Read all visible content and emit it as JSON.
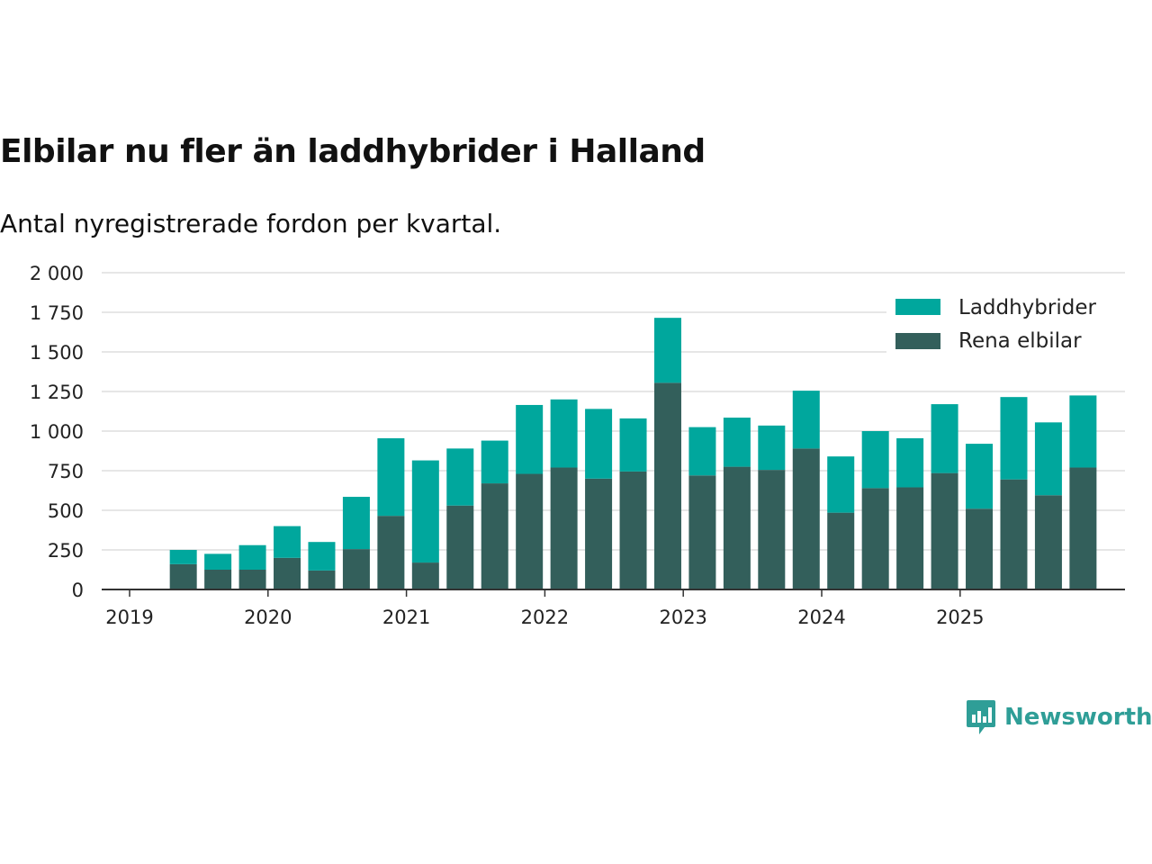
{
  "title": "Elbilar nu fler än laddhybrider i Halland",
  "subtitle": "Antal nyregistrerade fordon per kvartal.",
  "logo": {
    "text": "Newsworthy",
    "icon": "newsworthy-logo-icon"
  },
  "colors": {
    "hybrid": "#00a79d",
    "electric": "#335f5b",
    "grid": "#dddddd",
    "axis": "#333333"
  },
  "chart_data": {
    "type": "bar",
    "stacked": true,
    "title": "Elbilar nu fler än laddhybrider i Halland",
    "xlabel": "",
    "ylabel": "",
    "ylim": [
      0,
      2000
    ],
    "yticks": [
      0,
      250,
      500,
      750,
      1000,
      1250,
      1500,
      1750,
      2000
    ],
    "ytick_labels": [
      "0",
      "250",
      "500",
      "750",
      "1 000",
      "1 250",
      "1 500",
      "1 750",
      "2 000"
    ],
    "xtick_labels": [
      "2019",
      "2020",
      "2021",
      "2022",
      "2023",
      "2024",
      "2025"
    ],
    "legend_position": "top-right",
    "categories": [
      "2019 Q2",
      "2019 Q3",
      "2019 Q4",
      "2020 Q1",
      "2020 Q2",
      "2020 Q3",
      "2020 Q4",
      "2021 Q1",
      "2021 Q2",
      "2021 Q3",
      "2021 Q4",
      "2022 Q1",
      "2022 Q2",
      "2022 Q3",
      "2022 Q4",
      "2023 Q1",
      "2023 Q2",
      "2023 Q3",
      "2023 Q4",
      "2024 Q1",
      "2024 Q2",
      "2024 Q3",
      "2024 Q4",
      "2025 Q1",
      "2025 Q2",
      "2025 Q3",
      "2025 Q4"
    ],
    "series": [
      {
        "name": "Rena elbilar",
        "color": "#335f5b",
        "values": [
          160,
          125,
          125,
          200,
          120,
          255,
          465,
          170,
          530,
          670,
          730,
          770,
          700,
          745,
          1305,
          720,
          775,
          755,
          890,
          485,
          640,
          645,
          735,
          510,
          695,
          595,
          770
        ]
      },
      {
        "name": "Laddhybrider",
        "color": "#00a79d",
        "values": [
          90,
          100,
          155,
          200,
          180,
          330,
          490,
          645,
          360,
          270,
          435,
          430,
          440,
          335,
          410,
          305,
          310,
          280,
          365,
          355,
          360,
          310,
          435,
          410,
          520,
          460,
          455
        ]
      }
    ],
    "legend": [
      "Laddhybrider",
      "Rena elbilar"
    ]
  }
}
